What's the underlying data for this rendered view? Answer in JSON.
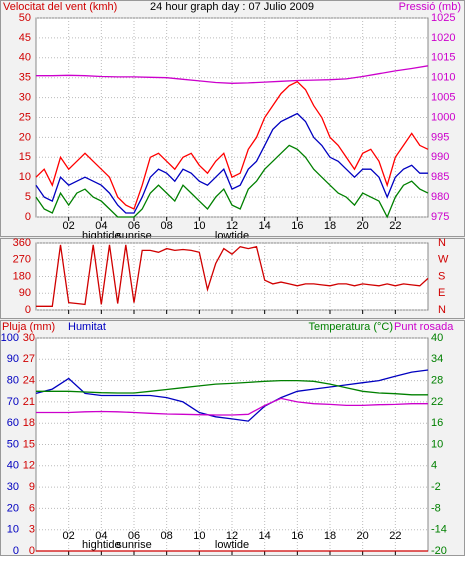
{
  "chart_data": [
    {
      "type": "line",
      "title": "24 hour graph day : 07 Julio 2009",
      "y_label": "Velocitat del vent (kmh)",
      "y2_label": "Pressió (mb)",
      "ytick_color": "#d00000",
      "y2tick_color": "#cc00cc",
      "grid": true,
      "xlim": [
        0,
        24
      ],
      "xticks": [
        {
          "value": 2,
          "label": "02"
        },
        {
          "value": 4,
          "label": "04"
        },
        {
          "value": 6,
          "label": "06"
        },
        {
          "value": 8,
          "label": "08"
        },
        {
          "value": 10,
          "label": "10"
        },
        {
          "value": 12,
          "label": "12"
        },
        {
          "value": 14,
          "label": "14"
        },
        {
          "value": 16,
          "label": "16"
        },
        {
          "value": 18,
          "label": "18"
        },
        {
          "value": 20,
          "label": "20"
        },
        {
          "value": 22,
          "label": "22"
        }
      ],
      "annotations": [
        {
          "x": 4,
          "text": "hightide"
        },
        {
          "x": 6,
          "text": "sunrise"
        },
        {
          "x": 12,
          "text": "lowtide"
        }
      ],
      "ylim": [
        0,
        50
      ],
      "yticks": [
        0,
        5,
        10,
        15,
        20,
        25,
        30,
        35,
        40,
        45,
        50
      ],
      "y2lim": [
        975,
        1025
      ],
      "y2ticks": [
        975,
        980,
        985,
        990,
        995,
        1000,
        1005,
        1010,
        1015,
        1020,
        1025
      ],
      "x": [
        0,
        0.5,
        1,
        1.5,
        2,
        2.5,
        3,
        3.5,
        4,
        4.5,
        5,
        5.5,
        6,
        6.5,
        7,
        7.5,
        8,
        8.5,
        9,
        9.5,
        10,
        10.5,
        11,
        11.5,
        12,
        12.5,
        13,
        13.5,
        14,
        14.5,
        15,
        15.5,
        16,
        16.5,
        17,
        17.5,
        18,
        18.5,
        19,
        19.5,
        20,
        20.5,
        21,
        21.5,
        22,
        22.5,
        23,
        23.5,
        24
      ],
      "series": [
        {
          "color": "#ff0000",
          "values": [
            10,
            12,
            8,
            15,
            12,
            14,
            16,
            14,
            12,
            10,
            5,
            3,
            2,
            8,
            15,
            16,
            14,
            12,
            15,
            16,
            13,
            11,
            14,
            16,
            10,
            11,
            17,
            20,
            25,
            28,
            31,
            33,
            34,
            32,
            28,
            25,
            20,
            18,
            15,
            12,
            16,
            17,
            14,
            8,
            15,
            18,
            21,
            18,
            17
          ]
        },
        {
          "color": "#008000",
          "values": [
            5,
            2,
            1,
            6,
            3,
            6,
            7,
            5,
            4,
            2,
            0,
            0,
            0,
            2,
            6,
            8,
            6,
            4,
            8,
            6,
            4,
            2,
            5,
            7,
            3,
            2,
            7,
            9,
            12,
            14,
            16,
            18,
            17,
            15,
            12,
            10,
            8,
            6,
            5,
            3,
            6,
            5,
            4,
            0,
            5,
            8,
            9,
            7,
            6
          ]
        },
        {
          "color": "#0000c0",
          "values": [
            8,
            5,
            4,
            10,
            8,
            9,
            10,
            9,
            8,
            6,
            3,
            1,
            1,
            5,
            10,
            12,
            11,
            9,
            12,
            11,
            9,
            8,
            10,
            12,
            7,
            8,
            12,
            14,
            18,
            22,
            24,
            25,
            26,
            24,
            20,
            18,
            15,
            14,
            12,
            10,
            12,
            12,
            10,
            5,
            10,
            12,
            13,
            11,
            11
          ]
        },
        {
          "color": "#cc00cc",
          "axis": "y2",
          "x": [
            0,
            1,
            2,
            3,
            4,
            5,
            6,
            7,
            8,
            9,
            10,
            11,
            12,
            13,
            14,
            15,
            16,
            17,
            18,
            19,
            20,
            21,
            22,
            23,
            24
          ],
          "values": [
            1010.5,
            1010.5,
            1010.6,
            1010.5,
            1010.3,
            1010.2,
            1010.2,
            1010.1,
            1010,
            1009.6,
            1009.2,
            1008.8,
            1008.6,
            1008.7,
            1008.9,
            1009.1,
            1009.3,
            1009.4,
            1009.5,
            1009.7,
            1010.3,
            1011,
            1011.7,
            1012.3,
            1013
          ]
        }
      ]
    },
    {
      "type": "line",
      "ytick_color": "#d00000",
      "y2tick_color": "#d00000",
      "grid": true,
      "xlim": [
        0,
        24
      ],
      "xticks": [
        2,
        4,
        6,
        8,
        10,
        12,
        14,
        16,
        18,
        20,
        22
      ],
      "ylim": [
        0,
        360
      ],
      "yticks": [
        0,
        90,
        180,
        270,
        360
      ],
      "y2lim": [
        0,
        360
      ],
      "y2ticks": [
        {
          "value": 360,
          "label": "N"
        },
        {
          "value": 270,
          "label": "W"
        },
        {
          "value": 180,
          "label": "S"
        },
        {
          "value": 90,
          "label": "E"
        },
        {
          "value": 0,
          "label": "N"
        }
      ],
      "x": [
        0,
        0.5,
        1,
        1.5,
        2,
        2.5,
        3,
        3.5,
        4,
        4.5,
        5,
        5.5,
        6,
        6.5,
        7,
        7.5,
        8,
        8.5,
        9,
        9.5,
        10,
        10.5,
        11,
        11.5,
        12,
        12.5,
        13,
        13.5,
        14,
        14.5,
        15,
        15.5,
        16,
        16.5,
        17,
        17.5,
        18,
        18.5,
        19,
        19.5,
        20,
        20.5,
        21,
        21.5,
        22,
        22.5,
        23,
        23.5,
        24
      ],
      "series": [
        {
          "color": "#d00000",
          "values": [
            20,
            20,
            20,
            350,
            40,
            35,
            30,
            350,
            30,
            350,
            35,
            350,
            40,
            320,
            320,
            310,
            330,
            320,
            325,
            320,
            310,
            110,
            250,
            330,
            300,
            340,
            330,
            340,
            160,
            140,
            150,
            140,
            130,
            140,
            140,
            135,
            130,
            140,
            140,
            130,
            140,
            135,
            130,
            140,
            130,
            140,
            135,
            130,
            170
          ]
        }
      ]
    },
    {
      "type": "line",
      "ytick_color": "#0000c0",
      "y2tick_color": "#008000",
      "y3tick_color": "#d00000",
      "grid": true,
      "xlim": [
        0,
        24
      ],
      "xticks": [
        {
          "value": 2,
          "label": "02"
        },
        {
          "value": 4,
          "label": "04"
        },
        {
          "value": 6,
          "label": "06"
        },
        {
          "value": 8,
          "label": "08"
        },
        {
          "value": 10,
          "label": "10"
        },
        {
          "value": 12,
          "label": "12"
        },
        {
          "value": 14,
          "label": "14"
        },
        {
          "value": 16,
          "label": "16"
        },
        {
          "value": 18,
          "label": "18"
        },
        {
          "value": 20,
          "label": "20"
        },
        {
          "value": 22,
          "label": "22"
        }
      ],
      "annotations": [
        {
          "x": 4,
          "text": "hightide"
        },
        {
          "x": 6,
          "text": "sunrise"
        },
        {
          "x": 12,
          "text": "lowtide"
        }
      ],
      "ylim": [
        0,
        100
      ],
      "yticks": [
        0,
        10,
        20,
        30,
        40,
        50,
        60,
        70,
        80,
        90,
        100
      ],
      "y2lim": [
        -20,
        40
      ],
      "y2ticks": [
        -20,
        -14,
        -8,
        -2,
        4,
        10,
        16,
        22,
        28,
        34,
        40
      ],
      "y3lim": [
        0,
        30
      ],
      "y3ticks": [
        0,
        3,
        6,
        9,
        12,
        15,
        18,
        21,
        24,
        27,
        30
      ],
      "x": [
        0,
        1,
        2,
        3,
        4,
        5,
        6,
        7,
        8,
        9,
        10,
        11,
        12,
        13,
        14,
        15,
        16,
        17,
        18,
        19,
        20,
        21,
        22,
        23,
        24
      ],
      "series": [
        {
          "name": "Pluja (mm)",
          "color": "#d00000",
          "axis": "y3",
          "values": [
            0,
            0,
            0,
            0,
            0,
            0,
            0,
            0,
            0,
            0,
            0,
            0,
            0,
            0,
            0,
            0,
            0,
            0,
            0,
            0,
            0,
            0,
            0,
            0,
            0
          ]
        },
        {
          "name": "Humitat",
          "color": "#0000c0",
          "values": [
            74,
            76,
            81,
            74,
            73,
            73,
            73,
            73,
            72,
            70,
            65,
            63,
            62,
            61,
            68,
            72,
            75,
            76,
            77,
            78,
            79,
            80,
            82,
            84,
            85
          ]
        },
        {
          "name": "Temperatura (°C)",
          "color": "#008000",
          "axis": "y2",
          "values": [
            25,
            25,
            25,
            24.8,
            24.6,
            24.5,
            24.5,
            25,
            25.5,
            26,
            26.5,
            27,
            27.2,
            27.5,
            27.8,
            28,
            28,
            27.8,
            27,
            26,
            25,
            24.5,
            24.3,
            24,
            24
          ]
        },
        {
          "name": "Punt rosada",
          "color": "#cc00cc",
          "axis": "y2",
          "values": [
            19,
            19,
            19,
            19.2,
            19.3,
            19.2,
            19,
            18.8,
            18.6,
            18.5,
            18.4,
            18.3,
            18.3,
            18.5,
            21,
            23,
            22,
            21.5,
            21.3,
            21,
            21,
            21.2,
            21.3,
            21.5,
            21.5
          ]
        }
      ]
    }
  ]
}
